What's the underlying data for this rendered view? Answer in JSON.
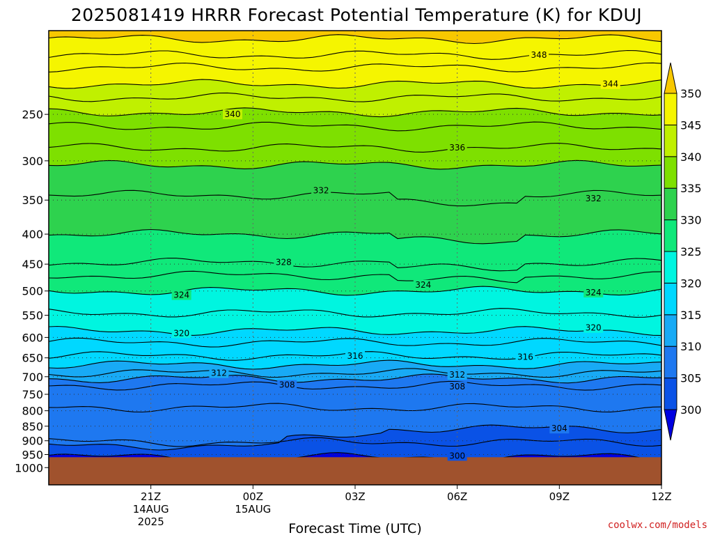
{
  "chart_data": {
    "type": "contour",
    "title": "2025081419 HRRR Forecast Potential Temperature (K) for KDUJ",
    "xlabel": "Forecast Time (UTC)",
    "ylabel": "",
    "credit": "coolwx.com/models",
    "x_range_hours": [
      -1,
      17
    ],
    "x_ticks": [
      {
        "hour": 2,
        "lines": [
          "21Z",
          "14AUG",
          "2025"
        ]
      },
      {
        "hour": 5,
        "lines": [
          "00Z",
          "15AUG"
        ]
      },
      {
        "hour": 8,
        "lines": [
          "03Z"
        ]
      },
      {
        "hour": 11,
        "lines": [
          "06Z"
        ]
      },
      {
        "hour": 14,
        "lines": [
          "09Z"
        ]
      },
      {
        "hour": 17,
        "lines": [
          "12Z"
        ]
      }
    ],
    "y_axis": {
      "scale": "log-pressure",
      "unit": "hPa",
      "range": [
        1070,
        180
      ],
      "ticks": [
        250,
        300,
        350,
        400,
        450,
        500,
        550,
        600,
        650,
        700,
        750,
        800,
        850,
        900,
        950,
        1000
      ]
    },
    "ground_pressure_hPa": 960,
    "colorbar": {
      "ticks": [
        300,
        305,
        310,
        315,
        320,
        325,
        330,
        335,
        340,
        345,
        350
      ],
      "colors": [
        "#0000e0",
        "#0a52e6",
        "#1e78f0",
        "#18aaf5",
        "#00d8ff",
        "#00f5e0",
        "#10e87a",
        "#2ed24e",
        "#7ee000",
        "#c0f000",
        "#f5f500",
        "#f8c800"
      ]
    },
    "contour_labels": [
      {
        "value": "348",
        "hour": 13.4,
        "p": 198
      },
      {
        "value": "344",
        "hour": 15.5,
        "p": 222
      },
      {
        "value": "340",
        "hour": 4.4,
        "p": 250
      },
      {
        "value": "336",
        "hour": 11.0,
        "p": 285
      },
      {
        "value": "332",
        "hour": 7.0,
        "p": 337
      },
      {
        "value": "332",
        "hour": 15.0,
        "p": 348
      },
      {
        "value": "328",
        "hour": 5.9,
        "p": 447
      },
      {
        "value": "324",
        "hour": 2.9,
        "p": 508
      },
      {
        "value": "324",
        "hour": 10.0,
        "p": 488
      },
      {
        "value": "324",
        "hour": 15.0,
        "p": 503
      },
      {
        "value": "320",
        "hour": 2.9,
        "p": 590
      },
      {
        "value": "320",
        "hour": 15.0,
        "p": 578
      },
      {
        "value": "316",
        "hour": 8.0,
        "p": 645
      },
      {
        "value": "316",
        "hour": 13.0,
        "p": 648
      },
      {
        "value": "312",
        "hour": 4.0,
        "p": 690
      },
      {
        "value": "312",
        "hour": 11.0,
        "p": 695
      },
      {
        "value": "308",
        "hour": 6.0,
        "p": 723
      },
      {
        "value": "308",
        "hour": 11.0,
        "p": 728
      },
      {
        "value": "304",
        "hour": 14.0,
        "p": 858
      },
      {
        "value": "300",
        "hour": 11.0,
        "p": 955
      }
    ]
  }
}
